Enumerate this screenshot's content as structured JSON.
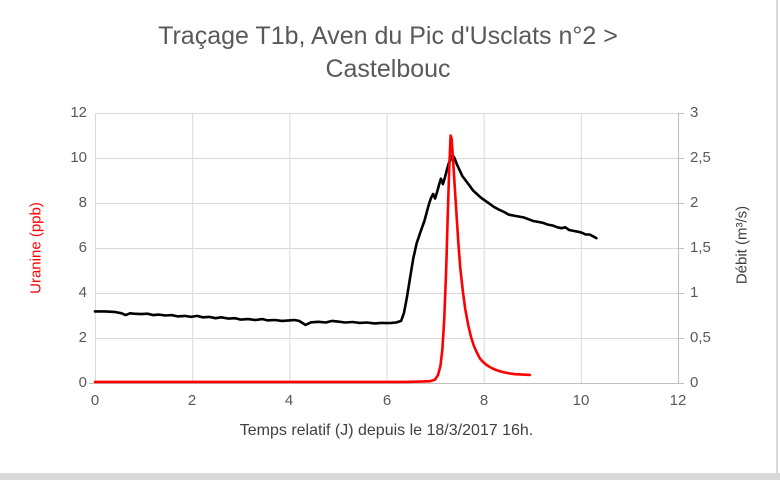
{
  "window": {
    "background": "#ffffff",
    "edge_color": "#d8d8d8"
  },
  "title": {
    "line1": "Traçage T1b, Aven du Pic d'Usclats n°2 >",
    "line2": "Castelbouc",
    "color": "#595959"
  },
  "chart_data": {
    "type": "line",
    "title": "Traçage T1b, Aven du Pic d'Usclats n°2 > Castelbouc",
    "xlabel": "Temps relatif (J) depuis le 18/3/2017 16h.",
    "xlim": [
      0,
      12
    ],
    "x_ticks": [
      0,
      2,
      4,
      6,
      8,
      10,
      12
    ],
    "x_tick_labels": [
      "0",
      "2",
      "4",
      "6",
      "8",
      "10",
      "12"
    ],
    "grid": true,
    "gridline_color": "#d9d9d9",
    "axis_line_color": "#bfbfbf",
    "legend": "none",
    "axes": {
      "left": {
        "label": "Uranine (ppb)",
        "label_color": "#ff0000",
        "lim": [
          0,
          12
        ],
        "ticks": [
          0,
          2,
          4,
          6,
          8,
          10,
          12
        ],
        "tick_labels": [
          "0",
          "2",
          "4",
          "6",
          "8",
          "10",
          "12"
        ]
      },
      "right": {
        "label": "Débit (m³/s)",
        "label_color": "#404040",
        "lim": [
          0,
          3
        ],
        "ticks": [
          0,
          0.5,
          1,
          1.5,
          2,
          2.5,
          3
        ],
        "tick_labels": [
          "0",
          "0,5",
          "1",
          "1,5",
          "2",
          "2,5",
          "3"
        ]
      }
    },
    "series": [
      {
        "name": "Débit (m³/s)",
        "axis": "right",
        "color": "#000000",
        "width": 2.6,
        "points": [
          [
            0,
            0.795
          ],
          [
            0.2,
            0.795
          ],
          [
            0.4,
            0.79
          ],
          [
            0.55,
            0.775
          ],
          [
            0.63,
            0.755
          ],
          [
            0.72,
            0.775
          ],
          [
            0.8,
            0.77
          ],
          [
            0.95,
            0.765
          ],
          [
            1.08,
            0.77
          ],
          [
            1.2,
            0.755
          ],
          [
            1.32,
            0.76
          ],
          [
            1.45,
            0.75
          ],
          [
            1.58,
            0.755
          ],
          [
            1.7,
            0.74
          ],
          [
            1.85,
            0.745
          ],
          [
            1.98,
            0.735
          ],
          [
            2.1,
            0.745
          ],
          [
            2.22,
            0.73
          ],
          [
            2.35,
            0.735
          ],
          [
            2.48,
            0.72
          ],
          [
            2.6,
            0.73
          ],
          [
            2.75,
            0.715
          ],
          [
            2.88,
            0.72
          ],
          [
            3.0,
            0.705
          ],
          [
            3.15,
            0.71
          ],
          [
            3.3,
            0.7
          ],
          [
            3.45,
            0.71
          ],
          [
            3.55,
            0.695
          ],
          [
            3.7,
            0.7
          ],
          [
            3.85,
            0.69
          ],
          [
            4.0,
            0.695
          ],
          [
            4.1,
            0.7
          ],
          [
            4.2,
            0.69
          ],
          [
            4.33,
            0.645
          ],
          [
            4.45,
            0.675
          ],
          [
            4.6,
            0.68
          ],
          [
            4.75,
            0.672
          ],
          [
            4.88,
            0.69
          ],
          [
            5.0,
            0.682
          ],
          [
            5.15,
            0.672
          ],
          [
            5.3,
            0.678
          ],
          [
            5.45,
            0.668
          ],
          [
            5.6,
            0.672
          ],
          [
            5.75,
            0.662
          ],
          [
            5.9,
            0.668
          ],
          [
            6.0,
            0.665
          ],
          [
            6.1,
            0.668
          ],
          [
            6.2,
            0.672
          ],
          [
            6.3,
            0.69
          ],
          [
            6.36,
            0.78
          ],
          [
            6.42,
            0.95
          ],
          [
            6.48,
            1.15
          ],
          [
            6.55,
            1.38
          ],
          [
            6.62,
            1.55
          ],
          [
            6.7,
            1.68
          ],
          [
            6.78,
            1.8
          ],
          [
            6.84,
            1.92
          ],
          [
            6.88,
            2.0
          ],
          [
            6.92,
            2.06
          ],
          [
            6.96,
            2.1
          ],
          [
            7.0,
            2.05
          ],
          [
            7.04,
            2.12
          ],
          [
            7.08,
            2.2
          ],
          [
            7.12,
            2.27
          ],
          [
            7.16,
            2.21
          ],
          [
            7.2,
            2.28
          ],
          [
            7.24,
            2.36
          ],
          [
            7.28,
            2.44
          ],
          [
            7.32,
            2.48
          ],
          [
            7.36,
            2.53
          ],
          [
            7.4,
            2.5
          ],
          [
            7.44,
            2.44
          ],
          [
            7.5,
            2.37
          ],
          [
            7.56,
            2.3
          ],
          [
            7.63,
            2.25
          ],
          [
            7.7,
            2.2
          ],
          [
            7.78,
            2.14
          ],
          [
            7.86,
            2.1
          ],
          [
            7.94,
            2.06
          ],
          [
            8.02,
            2.03
          ],
          [
            8.1,
            2.0
          ],
          [
            8.2,
            1.96
          ],
          [
            8.3,
            1.93
          ],
          [
            8.42,
            1.9
          ],
          [
            8.52,
            1.87
          ],
          [
            8.62,
            1.86
          ],
          [
            8.72,
            1.85
          ],
          [
            8.82,
            1.84
          ],
          [
            8.92,
            1.82
          ],
          [
            9.02,
            1.8
          ],
          [
            9.12,
            1.79
          ],
          [
            9.22,
            1.78
          ],
          [
            9.32,
            1.76
          ],
          [
            9.42,
            1.75
          ],
          [
            9.52,
            1.73
          ],
          [
            9.6,
            1.72
          ],
          [
            9.68,
            1.73
          ],
          [
            9.76,
            1.7
          ],
          [
            9.85,
            1.69
          ],
          [
            9.95,
            1.68
          ],
          [
            10.02,
            1.67
          ],
          [
            10.1,
            1.65
          ],
          [
            10.18,
            1.65
          ],
          [
            10.25,
            1.63
          ],
          [
            10.32,
            1.61
          ]
        ]
      },
      {
        "name": "Uranine (ppb)",
        "axis": "left",
        "color": "#ff0000",
        "width": 2.6,
        "points": [
          [
            0,
            0.05
          ],
          [
            0.5,
            0.05
          ],
          [
            1,
            0.05
          ],
          [
            1.5,
            0.05
          ],
          [
            2,
            0.05
          ],
          [
            2.5,
            0.05
          ],
          [
            3,
            0.05
          ],
          [
            3.5,
            0.05
          ],
          [
            4,
            0.05
          ],
          [
            4.5,
            0.05
          ],
          [
            5,
            0.05
          ],
          [
            5.5,
            0.05
          ],
          [
            6,
            0.05
          ],
          [
            6.4,
            0.05
          ],
          [
            6.7,
            0.06
          ],
          [
            6.9,
            0.08
          ],
          [
            7.0,
            0.15
          ],
          [
            7.06,
            0.35
          ],
          [
            7.11,
            0.75
          ],
          [
            7.15,
            1.5
          ],
          [
            7.19,
            2.9
          ],
          [
            7.23,
            5.2
          ],
          [
            7.26,
            7.4
          ],
          [
            7.29,
            9.5
          ],
          [
            7.32,
            11.0
          ],
          [
            7.34,
            10.85
          ],
          [
            7.37,
            9.9
          ],
          [
            7.4,
            8.9
          ],
          [
            7.44,
            7.5
          ],
          [
            7.48,
            6.2
          ],
          [
            7.52,
            5.1
          ],
          [
            7.57,
            4.1
          ],
          [
            7.62,
            3.3
          ],
          [
            7.68,
            2.6
          ],
          [
            7.74,
            2.05
          ],
          [
            7.8,
            1.65
          ],
          [
            7.86,
            1.35
          ],
          [
            7.92,
            1.1
          ],
          [
            7.98,
            0.95
          ],
          [
            8.06,
            0.8
          ],
          [
            8.15,
            0.68
          ],
          [
            8.25,
            0.58
          ],
          [
            8.35,
            0.51
          ],
          [
            8.45,
            0.46
          ],
          [
            8.55,
            0.42
          ],
          [
            8.65,
            0.39
          ],
          [
            8.75,
            0.38
          ],
          [
            8.85,
            0.37
          ],
          [
            8.95,
            0.36
          ]
        ]
      }
    ],
    "annotations": {
      "uranine_peak_ppb": 11.0,
      "uranine_peak_time_days": 7.32,
      "debit_peak_m3s": 2.53,
      "debit_peak_time_days": 7.36
    }
  }
}
